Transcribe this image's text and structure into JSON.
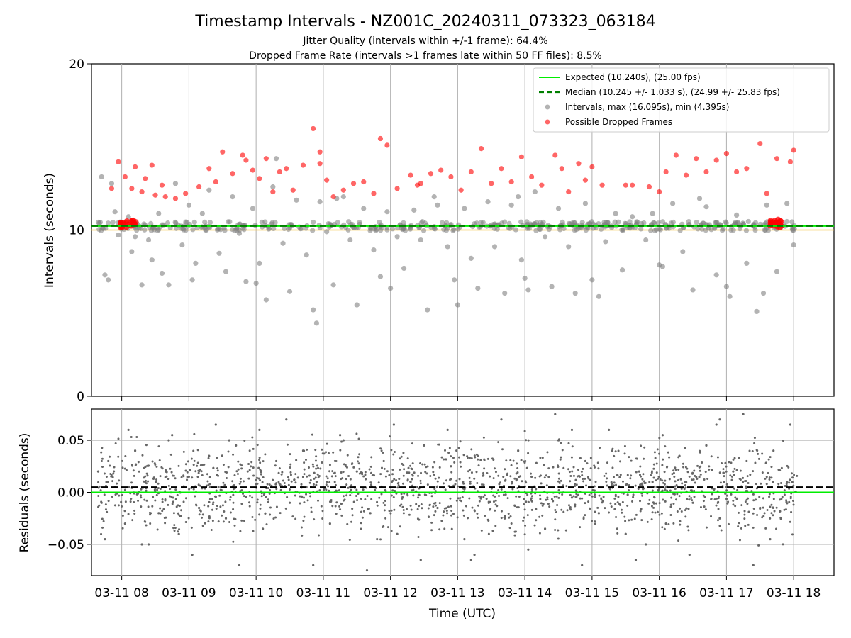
{
  "chart_data": [
    {
      "type": "scatter",
      "title": "Timestamp Intervals - NZ001C_20240311_073323_063184",
      "subtitle_lines": [
        "Jitter Quality (intervals within +/-1 frame): 64.4%",
        "Dropped Frame Rate (intervals >1 frames late within 50 FF files): 8.5%"
      ],
      "ylabel": "Intervals (seconds)",
      "ylim": [
        0,
        20
      ],
      "yticks": [
        0,
        10,
        20
      ],
      "y_tick_labels": [
        "0",
        "10",
        "20"
      ],
      "x_range_hours": [
        7.55,
        18.6
      ],
      "grid": "vertical lines at x ticks",
      "legend_position": "top-right",
      "legend": [
        {
          "label": "Expected (10.240s), (25.00 fps)",
          "style": "solid-line",
          "color": "#00ee00"
        },
        {
          "label": "Median (10.245 +/- 1.033 s), (24.99 +/- 25.83 fps)",
          "style": "dashed-line",
          "color": "#007f00"
        },
        {
          "label": "Intervals, max (16.095s), min (4.395s)",
          "style": "marker",
          "color": "#808080"
        },
        {
          "label": "Possible Dropped Frames",
          "style": "marker",
          "color": "#ff0000"
        }
      ],
      "expected_interval": 10.24,
      "median_interval": 10.245,
      "orange_reference_line": 10.0,
      "series": [
        {
          "name": "Intervals, max (16.095s), min (4.395s)",
          "color": "#808080",
          "x_hours": [
            7.7,
            7.75,
            7.8,
            7.9,
            7.95,
            8.1,
            8.2,
            8.3,
            8.4,
            8.45,
            8.55,
            8.6,
            8.7,
            8.8,
            8.9,
            9.0,
            9.1,
            9.2,
            9.3,
            9.45,
            9.55,
            9.65,
            9.75,
            9.85,
            9.95,
            10.05,
            10.15,
            10.25,
            10.4,
            10.5,
            10.6,
            10.75,
            10.85,
            10.95,
            11.05,
            11.15,
            11.3,
            11.4,
            11.5,
            11.6,
            11.75,
            11.85,
            11.95,
            12.1,
            12.2,
            12.35,
            12.45,
            12.55,
            12.7,
            12.85,
            12.95,
            13.1,
            13.2,
            13.3,
            13.45,
            13.55,
            13.7,
            13.8,
            13.95,
            14.05,
            14.15,
            14.3,
            14.4,
            14.5,
            14.65,
            14.75,
            14.9,
            15.0,
            15.2,
            15.35,
            15.45,
            15.6,
            15.8,
            15.9,
            16.05,
            16.2,
            16.35,
            16.5,
            16.7,
            16.85,
            17.0,
            17.15,
            17.3,
            17.45,
            17.6,
            17.75,
            17.9,
            18.0,
            8.15,
            9.05,
            10.0,
            10.9,
            12.0,
            13.0,
            14.0,
            15.1,
            16.0,
            17.05,
            7.85,
            10.3,
            11.2,
            12.65,
            13.9,
            16.6,
            17.55
          ],
          "y": [
            13.2,
            7.3,
            7.0,
            11.1,
            9.7,
            10.8,
            9.6,
            6.7,
            9.4,
            8.2,
            11.0,
            7.4,
            6.7,
            12.8,
            9.1,
            11.5,
            8.0,
            11.0,
            12.4,
            8.6,
            7.5,
            12.0,
            9.8,
            6.9,
            11.3,
            8.0,
            5.8,
            12.6,
            9.2,
            6.3,
            11.8,
            8.5,
            5.2,
            11.7,
            9.9,
            6.7,
            12.0,
            9.4,
            5.5,
            11.3,
            8.8,
            7.2,
            11.1,
            9.6,
            7.7,
            11.2,
            9.4,
            5.2,
            11.5,
            9.0,
            7.0,
            11.3,
            8.3,
            6.5,
            11.7,
            9.0,
            6.2,
            11.5,
            8.2,
            6.4,
            12.3,
            9.6,
            6.6,
            11.3,
            9.0,
            6.2,
            11.6,
            7.0,
            9.3,
            11.0,
            7.6,
            10.8,
            9.4,
            11.0,
            7.8,
            11.6,
            8.7,
            6.4,
            11.4,
            7.3,
            6.6,
            10.9,
            8.0,
            5.1,
            11.5,
            7.5,
            11.6,
            9.1,
            8.7,
            7.0,
            6.8,
            4.4,
            6.5,
            5.5,
            7.1,
            6.0,
            7.9,
            6.0,
            12.8,
            14.3,
            11.9,
            12.0,
            12.0,
            11.9,
            6.2
          ]
        },
        {
          "name": "Possible Dropped Frames",
          "color": "#ff0000",
          "x_hours": [
            7.85,
            7.95,
            8.05,
            8.15,
            8.2,
            8.3,
            8.35,
            8.45,
            8.5,
            8.6,
            8.65,
            8.8,
            8.95,
            9.15,
            9.3,
            9.4,
            9.5,
            9.65,
            9.8,
            9.95,
            10.05,
            10.15,
            10.25,
            10.35,
            10.45,
            10.55,
            10.7,
            10.85,
            10.95,
            11.05,
            11.15,
            11.3,
            11.45,
            11.6,
            11.75,
            11.85,
            11.95,
            12.1,
            12.3,
            12.45,
            12.6,
            12.75,
            12.9,
            13.05,
            13.2,
            13.35,
            13.5,
            13.65,
            13.8,
            13.95,
            14.1,
            14.25,
            14.45,
            14.55,
            14.65,
            14.8,
            15.0,
            15.15,
            15.5,
            15.6,
            15.85,
            16.0,
            16.1,
            16.25,
            16.4,
            16.55,
            16.7,
            16.85,
            17.0,
            17.15,
            17.3,
            17.5,
            17.6,
            17.75,
            17.95,
            18.0,
            10.95,
            12.4,
            9.85,
            14.9
          ],
          "y": [
            12.5,
            14.1,
            13.2,
            12.5,
            13.8,
            12.3,
            13.1,
            13.9,
            12.1,
            12.7,
            12.0,
            11.9,
            12.2,
            12.6,
            13.7,
            12.9,
            14.7,
            13.4,
            14.5,
            13.6,
            13.1,
            14.3,
            12.3,
            13.5,
            13.7,
            12.4,
            13.9,
            16.1,
            14.7,
            13.0,
            12.0,
            12.4,
            12.8,
            12.9,
            12.2,
            15.5,
            15.1,
            12.5,
            13.3,
            12.8,
            13.4,
            13.6,
            13.2,
            12.4,
            13.5,
            14.9,
            12.8,
            13.7,
            12.9,
            14.4,
            13.2,
            12.7,
            14.5,
            13.7,
            12.3,
            14.0,
            13.8,
            12.7,
            12.7,
            12.7,
            12.6,
            12.3,
            13.5,
            14.5,
            13.3,
            14.3,
            13.5,
            14.2,
            14.6,
            13.5,
            13.7,
            15.2,
            12.2,
            14.3,
            14.1,
            14.8,
            14.0,
            12.7,
            14.2,
            13.0
          ]
        }
      ]
    },
    {
      "type": "scatter",
      "xlabel": "Time (UTC)",
      "ylabel": "Residuals (seconds)",
      "ylim": [
        -0.08,
        0.08
      ],
      "yticks": [
        -0.05,
        0,
        0.05
      ],
      "y_tick_labels": [
        "−0.05",
        "0.00",
        "0.05"
      ],
      "x_range_hours": [
        7.55,
        18.6
      ],
      "xticks_hours": [
        8,
        9,
        10,
        11,
        12,
        13,
        14,
        15,
        16,
        17,
        18
      ],
      "x_tick_labels": [
        "03-11 08",
        "03-11 09",
        "03-11 10",
        "03-11 11",
        "03-11 12",
        "03-11 13",
        "03-11 14",
        "03-11 15",
        "03-11 16",
        "03-11 17",
        "03-11 18"
      ],
      "grid": "on",
      "expected_residual": 0.0,
      "median_residual": 0.005,
      "series": [
        {
          "color": "#666666",
          "x_hours": [
            7.65,
            7.7,
            7.8,
            7.9,
            8.05,
            8.2,
            8.35,
            8.55,
            8.7,
            8.85,
            9.0,
            9.15,
            9.3,
            9.55,
            9.7,
            9.9,
            10.1,
            10.3,
            10.5,
            10.7,
            10.9,
            11.1,
            11.3,
            11.5,
            11.7,
            11.9,
            12.1,
            12.3,
            12.5,
            12.7,
            12.9,
            13.1,
            13.3,
            13.5,
            13.7,
            13.9,
            14.1,
            14.3,
            14.5,
            14.7,
            14.9,
            15.1,
            15.3,
            15.5,
            15.7,
            15.9,
            16.1,
            16.3,
            16.5,
            16.7,
            16.9,
            17.1,
            17.3,
            17.5,
            17.7,
            17.9,
            7.75,
            8.1,
            8.4,
            8.75,
            9.05,
            9.4,
            9.75,
            10.05,
            10.45,
            10.85,
            11.25,
            11.65,
            12.05,
            12.45,
            12.85,
            13.25,
            13.65,
            14.05,
            14.45,
            14.85,
            15.25,
            15.65,
            16.05,
            16.45,
            16.85,
            17.25,
            17.65,
            17.95,
            8.3,
            9.6,
            11.8,
            13.2,
            14.7,
            15.8,
            16.9,
            17.4
          ],
          "y": [
            0.02,
            -0.01,
            0.03,
            0.005,
            -0.03,
            0.04,
            0.01,
            -0.02,
            0.05,
            -0.04,
            0.015,
            -0.015,
            0.035,
            -0.025,
            0.045,
            0.0,
            -0.035,
            0.03,
            -0.01,
            0.04,
            0.01,
            -0.03,
            0.05,
            0.02,
            -0.02,
            0.03,
            -0.04,
            0.01,
            0.045,
            -0.015,
            0.025,
            -0.045,
            0.035,
            0.0,
            -0.025,
            0.04,
            0.015,
            -0.035,
            0.05,
            -0.005,
            0.03,
            -0.02,
            0.04,
            -0.04,
            0.02,
            0.01,
            -0.03,
            0.035,
            -0.01,
            0.045,
            -0.025,
            0.02,
            0.03,
            -0.015,
            0.04,
            0.01,
            -0.045,
            0.06,
            -0.05,
            0.055,
            -0.06,
            0.065,
            -0.07,
            0.06,
            0.07,
            -0.07,
            0.055,
            -0.075,
            0.065,
            -0.065,
            0.06,
            -0.06,
            0.07,
            -0.055,
            0.075,
            -0.07,
            0.06,
            -0.065,
            0.055,
            -0.06,
            0.065,
            0.075,
            -0.045,
            0.065,
            -0.05,
            0.05,
            -0.045,
            -0.065,
            0.06,
            -0.05,
            0.07,
            -0.07
          ]
        }
      ]
    }
  ]
}
